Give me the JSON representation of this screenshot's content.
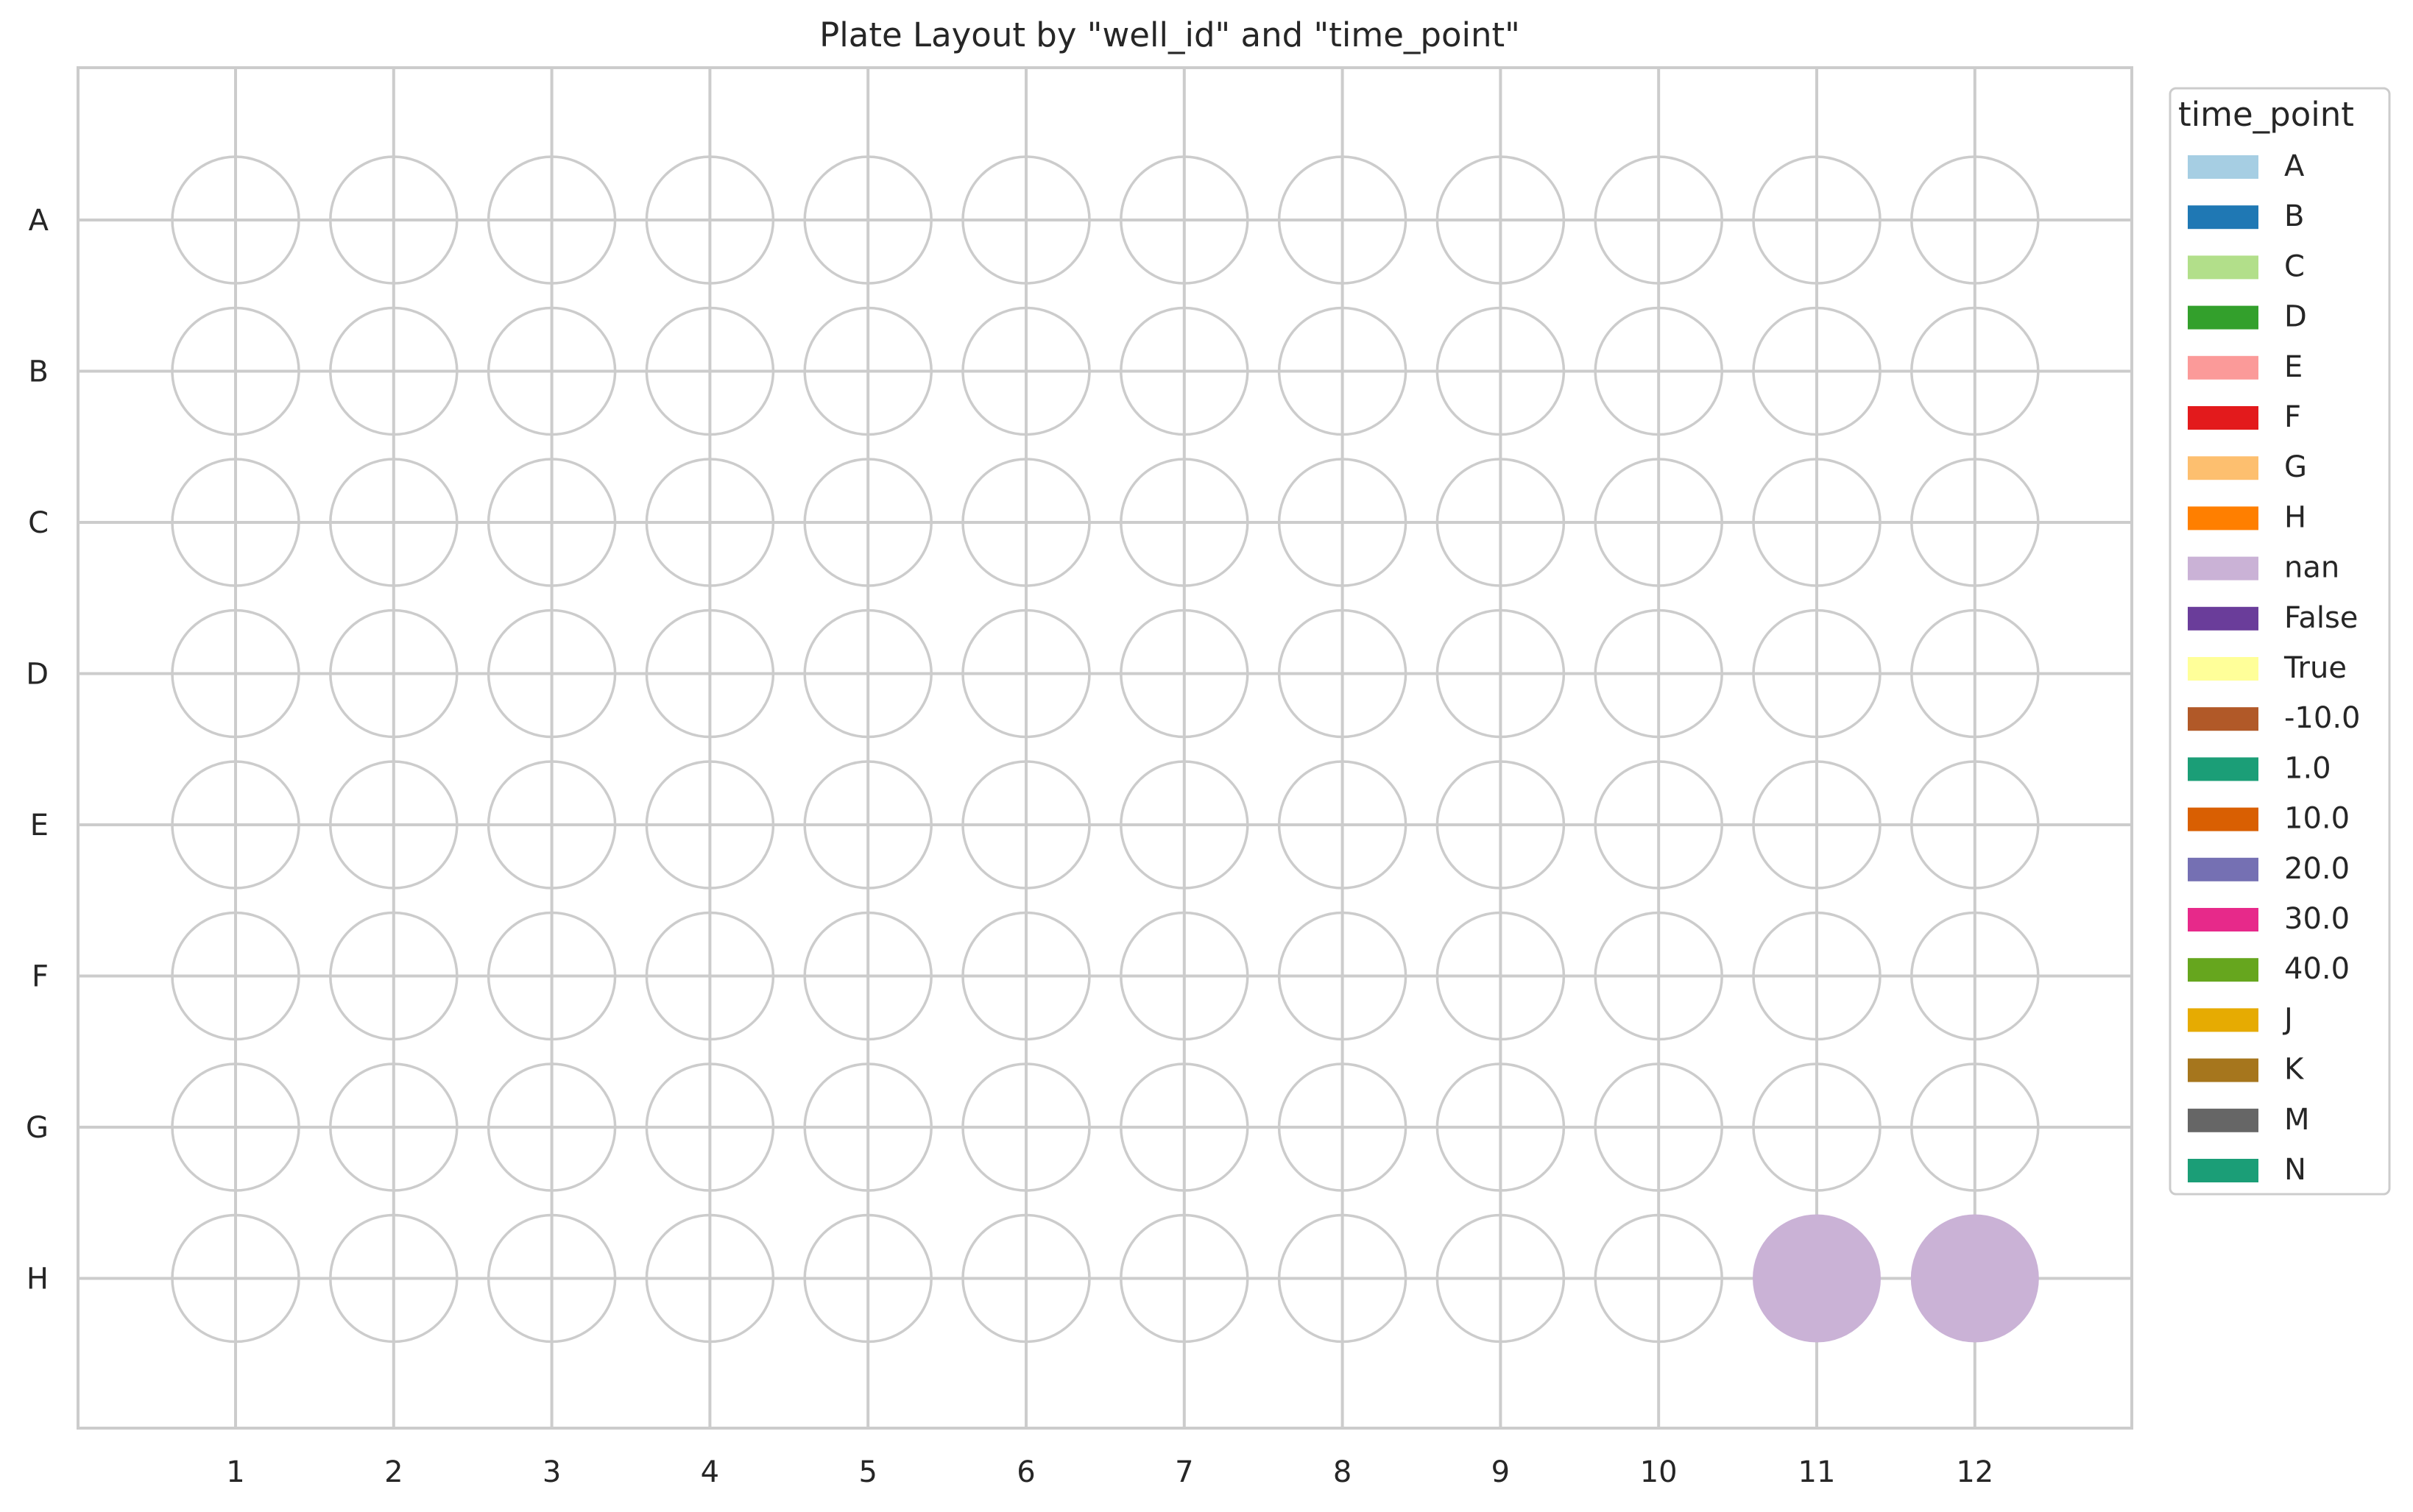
{
  "chart_data": {
    "type": "plate-layout",
    "title": "Plate Layout by \"well_id\" and \"time_point\"",
    "columns": [
      "1",
      "2",
      "3",
      "4",
      "5",
      "6",
      "7",
      "8",
      "9",
      "10",
      "11",
      "12"
    ],
    "rows": [
      "A",
      "B",
      "C",
      "D",
      "E",
      "F",
      "G",
      "H"
    ],
    "grid": true,
    "empty_well_style": {
      "fill": "#ffffff",
      "stroke": "#cccccc"
    },
    "filled_wells": [
      {
        "row": "H",
        "column": "11",
        "value": "nan"
      },
      {
        "row": "H",
        "column": "12",
        "value": "nan"
      }
    ],
    "legend": {
      "title": "time_point",
      "placement": "outside-upper-right",
      "entries": [
        {
          "label": "A",
          "color": "#a6cee3"
        },
        {
          "label": "B",
          "color": "#1f78b4"
        },
        {
          "label": "C",
          "color": "#b2df8a"
        },
        {
          "label": "D",
          "color": "#33a02c"
        },
        {
          "label": "E",
          "color": "#fb9a99"
        },
        {
          "label": "F",
          "color": "#e31a1c"
        },
        {
          "label": "G",
          "color": "#fdbf6f"
        },
        {
          "label": "H",
          "color": "#ff7f00"
        },
        {
          "label": "nan",
          "color": "#cab2d6"
        },
        {
          "label": "False",
          "color": "#6a3d9a"
        },
        {
          "label": "True",
          "color": "#ffff99"
        },
        {
          "label": "-10.0",
          "color": "#b15928"
        },
        {
          "label": "1.0",
          "color": "#1b9e77"
        },
        {
          "label": "10.0",
          "color": "#d95f02"
        },
        {
          "label": "20.0",
          "color": "#7570b3"
        },
        {
          "label": "30.0",
          "color": "#e7298a"
        },
        {
          "label": "40.0",
          "color": "#66a61e"
        },
        {
          "label": "J",
          "color": "#e6ab02"
        },
        {
          "label": "K",
          "color": "#a6761d"
        },
        {
          "label": "M",
          "color": "#666666"
        },
        {
          "label": "N",
          "color": "#1b9e77"
        }
      ]
    }
  }
}
